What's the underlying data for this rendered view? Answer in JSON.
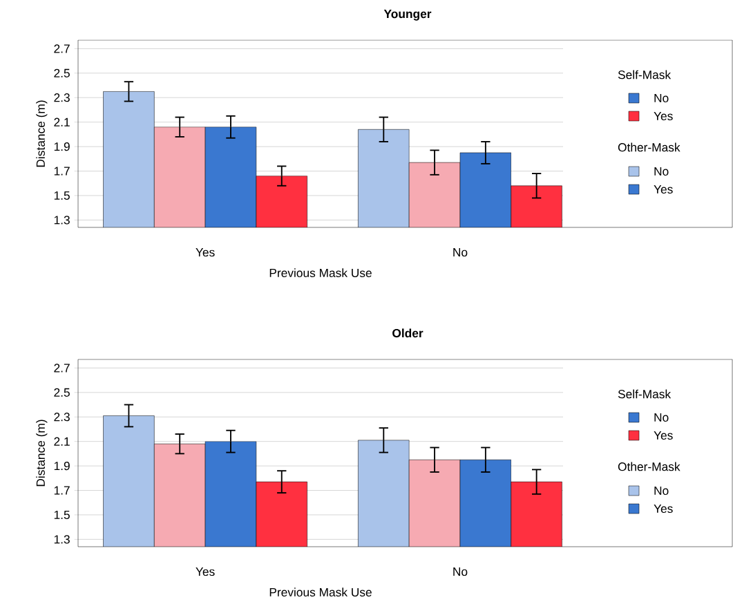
{
  "chart_data": [
    {
      "type": "bar",
      "title": "Younger",
      "xlabel": "Previous Mask Use",
      "ylabel": "Distance (m)",
      "categories": [
        "Yes",
        "No"
      ],
      "series": [
        {
          "color": "#a9c3ea",
          "values": [
            2.35,
            2.04
          ],
          "errors": [
            0.08,
            0.1
          ]
        },
        {
          "color": "#f6aab2",
          "values": [
            2.06,
            1.77
          ],
          "errors": [
            0.08,
            0.1
          ]
        },
        {
          "color": "#3a78d0",
          "values": [
            2.06,
            1.85
          ],
          "errors": [
            0.09,
            0.09
          ]
        },
        {
          "color": "#ff3040",
          "values": [
            1.66,
            1.58
          ],
          "errors": [
            0.08,
            0.1
          ]
        }
      ],
      "ylim": [
        1.24,
        2.77
      ],
      "yticks": [
        1.3,
        1.5,
        1.7,
        1.9,
        2.1,
        2.3,
        2.5,
        2.7
      ],
      "grid": "y",
      "annotations": [
        "Self-Mask",
        "No",
        "Yes",
        "Other-Mask",
        "No",
        "Yes"
      ]
    },
    {
      "type": "bar",
      "title": "Older",
      "xlabel": "Previous Mask Use",
      "ylabel": "Distance (m)",
      "categories": [
        "Yes",
        "No"
      ],
      "series": [
        {
          "color": "#a9c3ea",
          "values": [
            2.31,
            2.11
          ],
          "errors": [
            0.09,
            0.1
          ]
        },
        {
          "color": "#f6aab2",
          "values": [
            2.08,
            1.95
          ],
          "errors": [
            0.08,
            0.1
          ]
        },
        {
          "color": "#3a78d0",
          "values": [
            2.1,
            1.95
          ],
          "errors": [
            0.09,
            0.1
          ]
        },
        {
          "color": "#ff3040",
          "values": [
            1.77,
            1.77
          ],
          "errors": [
            0.09,
            0.1
          ]
        }
      ],
      "ylim": [
        1.24,
        2.77
      ],
      "yticks": [
        1.3,
        1.5,
        1.7,
        1.9,
        2.1,
        2.3,
        2.5,
        2.7
      ],
      "grid": "y",
      "annotations": [
        "Self-Mask",
        "No",
        "Yes",
        "Other-Mask",
        "No",
        "Yes"
      ]
    }
  ]
}
